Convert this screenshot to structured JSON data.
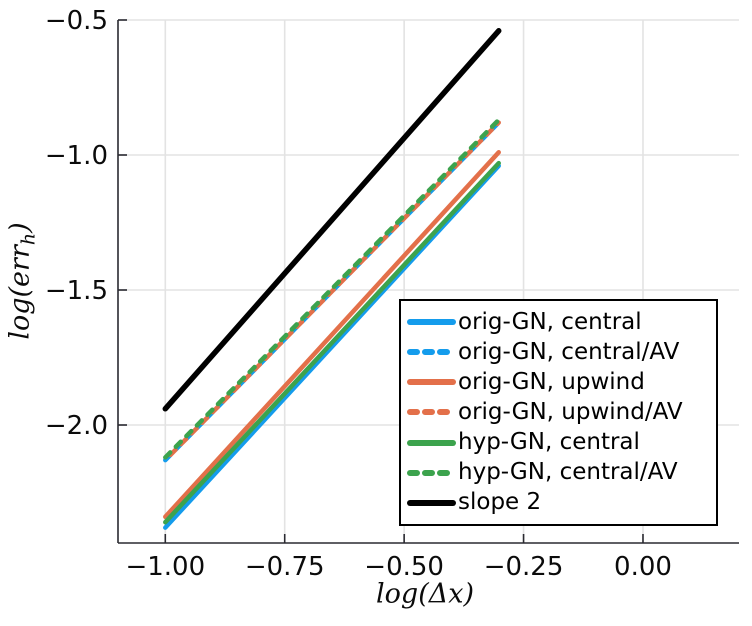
{
  "figure": {
    "background": "#ffffff"
  },
  "axes": {
    "xlabel": "log(Δx)",
    "ylabel": {
      "pre": "log(err",
      "sub": "h",
      "post": ")"
    },
    "xticks": {
      "values": [
        -1.0,
        -0.75,
        -0.5,
        -0.25,
        0.0
      ],
      "labels": [
        "−1.00",
        "−0.75",
        "−0.50",
        "−0.25",
        "0.00"
      ]
    },
    "yticks": {
      "values": [
        -0.5,
        -1.0,
        -1.5,
        -2.0
      ],
      "labels": [
        "−0.5",
        "−1.0",
        "−1.5",
        "−2.0"
      ]
    },
    "grid_color": "#e3e3e3",
    "spine_color": "#2a2a31",
    "tick_label_color": "#0b0b0b"
  },
  "chart_data": {
    "type": "line",
    "title": "",
    "xlabel": "log(Δx)",
    "ylabel": "log(err_h)",
    "xlim": [
      -1.099,
      0.201
    ],
    "ylim": [
      -2.437,
      -0.5
    ],
    "grid": true,
    "legend_position": "inside-right-center",
    "series": [
      {
        "name": "orig-GN, central",
        "color": "#149CEC",
        "dash": false,
        "width": 4.5,
        "x": [
          -1.0,
          -0.302
        ],
        "y": [
          -2.38,
          -1.04
        ]
      },
      {
        "name": "orig-GN, central/AV",
        "color": "#149CEC",
        "dash": true,
        "width": 4.5,
        "phase": 0,
        "x": [
          -1.0,
          -0.302
        ],
        "y": [
          -2.13,
          -0.88
        ]
      },
      {
        "name": "orig-GN, upwind",
        "color": "#E3704A",
        "dash": false,
        "width": 4.5,
        "x": [
          -1.0,
          -0.302
        ],
        "y": [
          -2.34,
          -0.99
        ]
      },
      {
        "name": "orig-GN, upwind/AV",
        "color": "#E3704A",
        "dash": true,
        "width": 4.5,
        "phase": 7.5,
        "x": [
          -1.0,
          -0.302
        ],
        "y": [
          -2.13,
          -0.88
        ]
      },
      {
        "name": "hyp-GN, central",
        "color": "#3CA34D",
        "dash": false,
        "width": 4.5,
        "x": [
          -1.0,
          -0.302
        ],
        "y": [
          -2.36,
          -1.03
        ]
      },
      {
        "name": "hyp-GN, central/AV",
        "color": "#3CA34D",
        "dash": true,
        "width": 4.5,
        "phase": 0,
        "x": [
          -1.0,
          -0.302
        ],
        "y": [
          -2.12,
          -0.87
        ]
      },
      {
        "name": "slope 2",
        "color": "#000000",
        "dash": false,
        "width": 5.5,
        "x": [
          -1.0,
          -0.302
        ],
        "y": [
          -1.94,
          -0.54
        ]
      }
    ]
  }
}
